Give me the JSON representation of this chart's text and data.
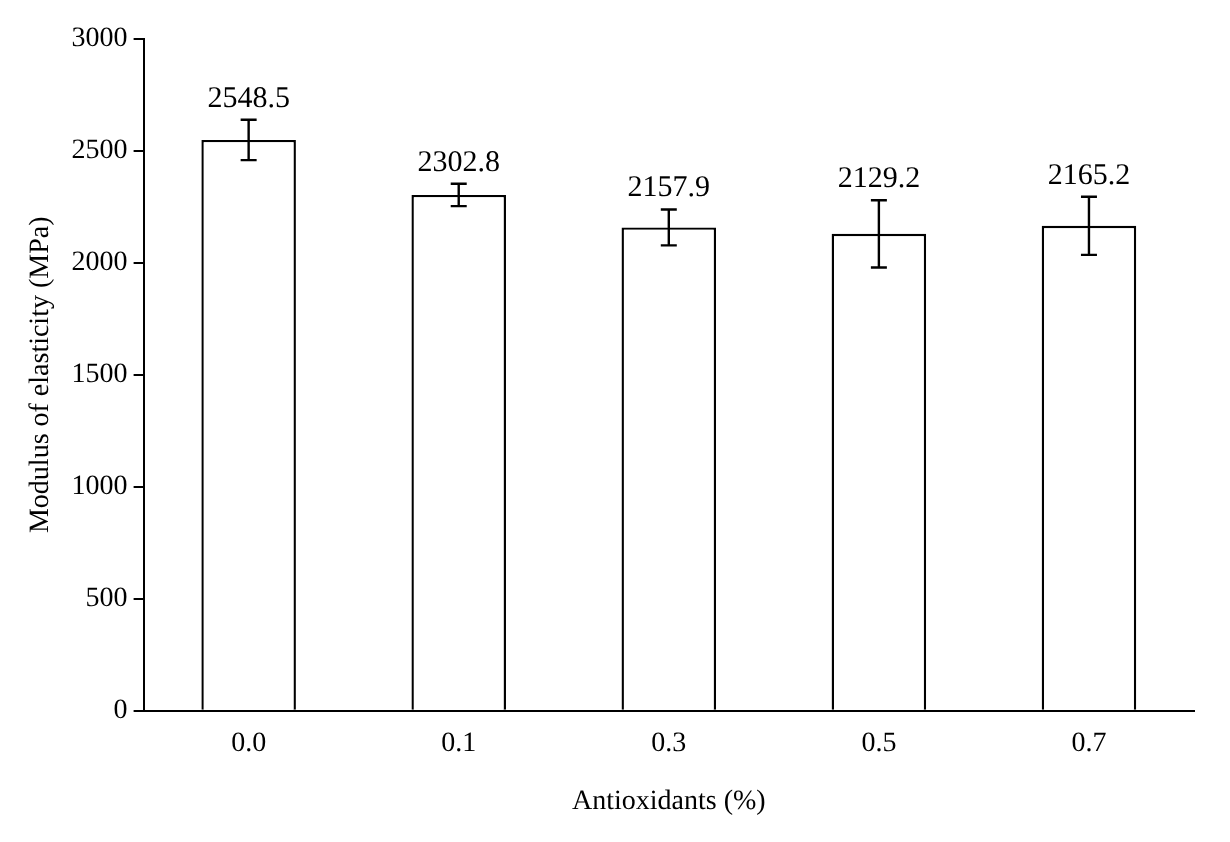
{
  "chart_data": {
    "type": "bar",
    "xlabel": "Antioxidants (%)",
    "ylabel": "Modulus of elasticity (MPa)",
    "categories": [
      "0.0",
      "0.1",
      "0.3",
      "0.5",
      "0.7"
    ],
    "values": [
      2548.5,
      2302.8,
      2157.9,
      2129.2,
      2165.2
    ],
    "errors": [
      90,
      50,
      80,
      150,
      130
    ],
    "color": "#ffffff",
    "ylim": [
      0,
      3000
    ],
    "yticks": [
      0,
      500,
      1000,
      1500,
      2000,
      2500,
      3000
    ],
    "grid": false,
    "legend": false,
    "data_labels": true
  }
}
